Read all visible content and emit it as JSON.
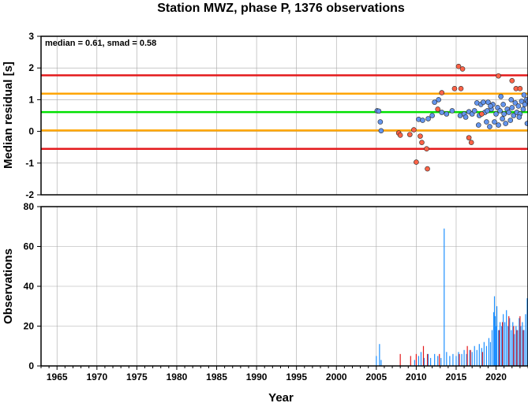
{
  "title": "Station MWZ, phase P, 1376 observations",
  "chart_data": [
    {
      "type": "scatter",
      "ylabel": "Median residual [s]",
      "annotation": "median = 0.61, smad = 0.58",
      "xlim": [
        1963,
        2024
      ],
      "ylim": [
        -2,
        3
      ],
      "yticks": [
        -2,
        -1,
        0,
        1,
        2,
        3
      ],
      "grid": true,
      "reference_lines": [
        {
          "y": 1.77,
          "color": "#e41a1c"
        },
        {
          "y": 1.19,
          "color": "#ffa500"
        },
        {
          "y": 0.61,
          "color": "#00e000"
        },
        {
          "y": 0.03,
          "color": "#ffa500"
        },
        {
          "y": -0.55,
          "color": "#e41a1c"
        }
      ],
      "series": [
        {
          "color": "#6495ed",
          "points": [
            [
              2005.1,
              0.65
            ],
            [
              2005.3,
              0.64
            ],
            [
              2005.5,
              0.3
            ],
            [
              2005.6,
              0.02
            ],
            [
              2010.3,
              0.38
            ],
            [
              2010.8,
              0.35
            ],
            [
              2011.5,
              0.4
            ],
            [
              2012.0,
              0.5
            ],
            [
              2012.3,
              0.92
            ],
            [
              2012.8,
              1.0
            ],
            [
              2013.2,
              0.6
            ],
            [
              2013.8,
              0.55
            ],
            [
              2014.5,
              0.65
            ],
            [
              2015.5,
              0.5
            ],
            [
              2016.0,
              0.55
            ],
            [
              2016.6,
              0.62
            ],
            [
              2017.0,
              0.55
            ],
            [
              2017.3,
              0.65
            ],
            [
              2017.6,
              0.9
            ],
            [
              2017.9,
              0.5
            ],
            [
              2018.1,
              0.85
            ],
            [
              2018.4,
              0.92
            ],
            [
              2018.6,
              0.6
            ],
            [
              2018.8,
              0.3
            ],
            [
              2019.0,
              0.92
            ],
            [
              2019.2,
              0.15
            ],
            [
              2019.4,
              0.7
            ],
            [
              2019.6,
              0.85
            ],
            [
              2019.8,
              0.3
            ],
            [
              2020.0,
              0.55
            ],
            [
              2020.2,
              0.75
            ],
            [
              2020.3,
              0.2
            ],
            [
              2020.5,
              0.65
            ],
            [
              2020.6,
              1.1
            ],
            [
              2020.8,
              0.4
            ],
            [
              2021.0,
              0.55
            ],
            [
              2021.2,
              0.25
            ],
            [
              2021.4,
              0.7
            ],
            [
              2021.6,
              0.6
            ],
            [
              2021.8,
              0.35
            ],
            [
              2022.0,
              0.75
            ],
            [
              2022.2,
              0.5
            ],
            [
              2022.4,
              0.9
            ],
            [
              2022.6,
              0.6
            ],
            [
              2022.8,
              0.8
            ],
            [
              2023.0,
              0.55
            ],
            [
              2023.2,
              0.95
            ],
            [
              2023.4,
              0.7
            ],
            [
              2023.6,
              0.85
            ],
            [
              2023.8,
              1.0
            ],
            [
              2023.9,
              0.25
            ],
            [
              2024.0,
              0.95
            ],
            [
              2016.2,
              0.45
            ],
            [
              2017.8,
              0.2
            ],
            [
              2018.9,
              0.65
            ],
            [
              2021.9,
              1.0
            ],
            [
              2022.9,
              0.45
            ],
            [
              2023.5,
              1.15
            ],
            [
              2019.3,
              0.8
            ],
            [
              2020.9,
              0.85
            ]
          ]
        },
        {
          "color": "#ff6347",
          "points": [
            [
              2007.8,
              -0.05
            ],
            [
              2008.0,
              -0.12
            ],
            [
              2009.2,
              -0.1
            ],
            [
              2009.7,
              0.05
            ],
            [
              2010.0,
              -0.97
            ],
            [
              2010.5,
              -0.15
            ],
            [
              2010.7,
              -0.35
            ],
            [
              2011.3,
              -0.55
            ],
            [
              2011.4,
              -1.18
            ],
            [
              2012.7,
              0.7
            ],
            [
              2013.2,
              1.22
            ],
            [
              2014.8,
              1.35
            ],
            [
              2015.3,
              2.05
            ],
            [
              2015.8,
              1.97
            ],
            [
              2015.6,
              1.35
            ],
            [
              2016.6,
              -0.2
            ],
            [
              2016.9,
              -0.35
            ],
            [
              2018.2,
              0.55
            ],
            [
              2020.3,
              1.75
            ],
            [
              2022.0,
              1.6
            ],
            [
              2022.5,
              1.35
            ],
            [
              2023.0,
              1.35
            ]
          ]
        }
      ]
    },
    {
      "type": "bar",
      "xlabel": "Year",
      "ylabel": "Observations",
      "xlim": [
        1963,
        2024
      ],
      "ylim": [
        0,
        80
      ],
      "yticks": [
        0,
        20,
        40,
        60,
        80
      ],
      "xticks": [
        1965,
        1970,
        1975,
        1980,
        1985,
        1990,
        1995,
        2000,
        2005,
        2010,
        2015,
        2020
      ],
      "grid": true,
      "series": [
        {
          "color": "#1e90ff",
          "bars": [
            [
              2005.0,
              5
            ],
            [
              2005.4,
              11
            ],
            [
              2005.6,
              3
            ],
            [
              2009.8,
              3
            ],
            [
              2010.3,
              5
            ],
            [
              2010.6,
              7
            ],
            [
              2011.0,
              4
            ],
            [
              2011.5,
              6
            ],
            [
              2011.8,
              4
            ],
            [
              2012.3,
              6
            ],
            [
              2012.7,
              5
            ],
            [
              2013.1,
              4
            ],
            [
              2013.5,
              69
            ],
            [
              2013.8,
              7
            ],
            [
              2014.2,
              5
            ],
            [
              2014.6,
              6
            ],
            [
              2015.0,
              5
            ],
            [
              2015.3,
              7
            ],
            [
              2015.7,
              6
            ],
            [
              2016.0,
              8
            ],
            [
              2016.3,
              6
            ],
            [
              2016.7,
              8
            ],
            [
              2017.0,
              7
            ],
            [
              2017.3,
              10
            ],
            [
              2017.6,
              8
            ],
            [
              2017.9,
              11
            ],
            [
              2018.2,
              9
            ],
            [
              2018.5,
              12
            ],
            [
              2018.8,
              10
            ],
            [
              2019.1,
              14
            ],
            [
              2019.3,
              12
            ],
            [
              2019.5,
              18
            ],
            [
              2019.7,
              27
            ],
            [
              2019.8,
              35
            ],
            [
              2019.9,
              25
            ],
            [
              2020.0,
              20
            ],
            [
              2020.1,
              30
            ],
            [
              2020.3,
              18
            ],
            [
              2020.5,
              22
            ],
            [
              2020.7,
              20
            ],
            [
              2020.9,
              26
            ],
            [
              2021.1,
              22
            ],
            [
              2021.3,
              28
            ],
            [
              2021.5,
              20
            ],
            [
              2021.7,
              24
            ],
            [
              2021.9,
              18
            ],
            [
              2022.1,
              22
            ],
            [
              2022.3,
              16
            ],
            [
              2022.5,
              20
            ],
            [
              2022.7,
              18
            ],
            [
              2022.9,
              24
            ],
            [
              2023.1,
              20
            ],
            [
              2023.3,
              22
            ],
            [
              2023.5,
              18
            ],
            [
              2023.7,
              26
            ],
            [
              2023.9,
              34
            ],
            [
              2024.0,
              30
            ]
          ]
        },
        {
          "color": "#e41a1c",
          "bars": [
            [
              2008.0,
              6
            ],
            [
              2009.3,
              5
            ],
            [
              2010.0,
              6
            ],
            [
              2010.9,
              10
            ],
            [
              2011.4,
              6
            ],
            [
              2012.9,
              6
            ],
            [
              2015.4,
              6
            ],
            [
              2016.4,
              10
            ],
            [
              2016.8,
              8
            ],
            [
              2018.3,
              7
            ],
            [
              2020.4,
              18
            ],
            [
              2020.8,
              22
            ],
            [
              2021.6,
              25
            ],
            [
              2022.2,
              20
            ],
            [
              2022.6,
              18
            ],
            [
              2023.0,
              25
            ],
            [
              2023.4,
              18
            ]
          ]
        }
      ]
    }
  ]
}
